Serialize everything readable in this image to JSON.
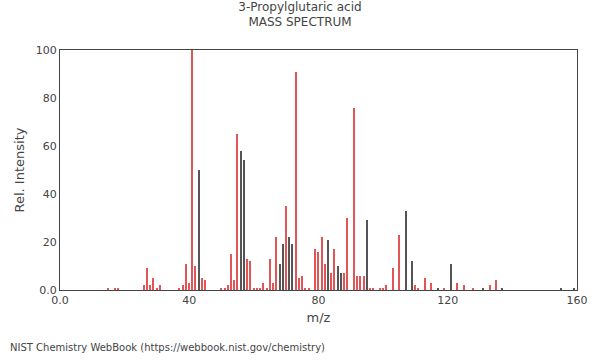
{
  "chart_data": {
    "type": "bar",
    "title": "3-Propylglutaric acid",
    "subtitle": "MASS SPECTRUM",
    "x_label": "m/z",
    "y_label": "Rel. Intensity",
    "annotations": [
      "NIST Chemistry WebBook (https://webbook.nist.gov/chemistry)"
    ],
    "x": [
      15,
      17,
      18,
      26,
      27,
      28,
      29,
      30,
      31,
      37,
      38,
      39,
      40,
      41,
      42,
      43,
      44,
      45,
      50,
      51,
      52,
      53,
      54,
      55,
      56,
      57,
      58,
      59,
      60,
      61,
      62,
      63,
      64,
      65,
      66,
      67,
      68,
      69,
      70,
      71,
      72,
      73,
      74,
      75,
      76,
      77,
      79,
      80,
      81,
      82,
      83,
      84,
      85,
      86,
      87,
      88,
      89,
      91,
      92,
      93,
      94,
      95,
      96,
      97,
      99,
      100,
      101,
      103,
      105,
      107,
      109,
      110,
      111,
      113,
      115,
      117,
      119,
      121,
      123,
      125,
      128,
      131,
      133,
      135,
      137,
      155,
      159
    ],
    "values": [
      1,
      1,
      1,
      2,
      9,
      2,
      5,
      1,
      2,
      1,
      2,
      11,
      3,
      100,
      10,
      50,
      5,
      4,
      1,
      1,
      2,
      15,
      4,
      65,
      58,
      54,
      13,
      12,
      1,
      1,
      1,
      3,
      1,
      13,
      3,
      22,
      11,
      19,
      35,
      22,
      19,
      91,
      5,
      6,
      1,
      1,
      17,
      16,
      22,
      11,
      21,
      7,
      17,
      10,
      7,
      7,
      30,
      76,
      6,
      6,
      6,
      29,
      1,
      1,
      1,
      1,
      2,
      9,
      23,
      33,
      12,
      2,
      1,
      5,
      3,
      1,
      1,
      11,
      3,
      2,
      1,
      1,
      2,
      4,
      1,
      1,
      1
    ],
    "colors": [
      "#e05555",
      "#e05555",
      "#e05555",
      "#e05555",
      "#e05555",
      "#e05555",
      "#e05555",
      "#e05555",
      "#e05555",
      "#e05555",
      "#e05555",
      "#e05555",
      "#e05555",
      "#e05555",
      "#e05555",
      "#555555",
      "#e05555",
      "#e05555",
      "#e05555",
      "#e05555",
      "#e05555",
      "#e05555",
      "#e05555",
      "#e05555",
      "#555555",
      "#555555",
      "#e05555",
      "#e05555",
      "#e05555",
      "#e05555",
      "#e05555",
      "#e05555",
      "#e05555",
      "#e05555",
      "#e05555",
      "#e05555",
      "#555555",
      "#555555",
      "#e05555",
      "#555555",
      "#555555",
      "#e05555",
      "#e05555",
      "#e05555",
      "#e05555",
      "#e05555",
      "#e05555",
      "#e05555",
      "#e05555",
      "#e05555",
      "#555555",
      "#e05555",
      "#e05555",
      "#555555",
      "#555555",
      "#e05555",
      "#e05555",
      "#e05555",
      "#e05555",
      "#e05555",
      "#e05555",
      "#555555",
      "#e05555",
      "#e05555",
      "#e05555",
      "#e05555",
      "#e05555",
      "#e05555",
      "#e05555",
      "#555555",
      "#555555",
      "#e05555",
      "#e05555",
      "#e05555",
      "#e05555",
      "#555555",
      "#e05555",
      "#555555",
      "#e05555",
      "#e05555",
      "#e05555",
      "#555555",
      "#e05555",
      "#e05555",
      "#555555",
      "#555555",
      "#555555"
    ],
    "xlim": [
      0,
      160
    ],
    "ylim": [
      0,
      100
    ],
    "xticks": [
      {
        "value": 0,
        "label": "0.0"
      },
      40,
      80,
      120,
      160
    ],
    "yticks": [
      {
        "value": 0,
        "label": "0.0"
      },
      20,
      40,
      60,
      80,
      100
    ],
    "grid": false
  }
}
